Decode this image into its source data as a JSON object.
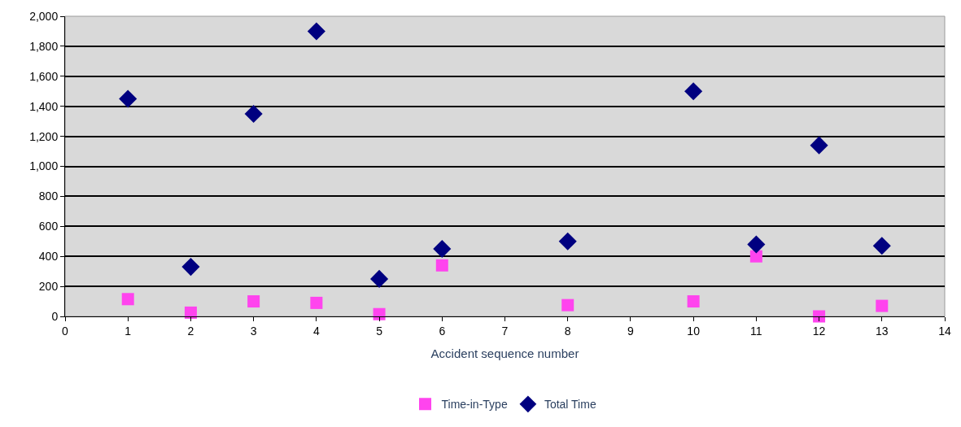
{
  "chart_data": {
    "type": "scatter",
    "xlabel": "Accident sequence number",
    "x": [
      1,
      2,
      3,
      4,
      5,
      6,
      8,
      10,
      11,
      12,
      13
    ],
    "series": [
      {
        "name": "Time-in-Type",
        "color": "#ff44ee",
        "marker": "square",
        "values": [
          115,
          25,
          100,
          90,
          15,
          340,
          75,
          100,
          400,
          0,
          70
        ]
      },
      {
        "name": "Total Time",
        "color": "#000080",
        "marker": "diamond",
        "values": [
          1450,
          330,
          1350,
          1900,
          250,
          450,
          500,
          1500,
          480,
          1140,
          470
        ]
      }
    ],
    "xlim": [
      0,
      14
    ],
    "xticks": [
      0,
      1,
      2,
      3,
      4,
      5,
      6,
      7,
      8,
      9,
      10,
      11,
      12,
      13,
      14
    ],
    "ylim": [
      0,
      2000
    ],
    "yticks": [
      {
        "value": 0,
        "label": "0"
      },
      {
        "value": 200,
        "label": "200"
      },
      {
        "value": 400,
        "label": "400"
      },
      {
        "value": 600,
        "label": "600"
      },
      {
        "value": 800,
        "label": "800"
      },
      {
        "value": 1000,
        "label": "1,000"
      },
      {
        "value": 1200,
        "label": "1,200"
      },
      {
        "value": 1400,
        "label": "1,400"
      },
      {
        "value": 1600,
        "label": "1,600"
      },
      {
        "value": 1800,
        "label": "1,800"
      },
      {
        "value": 2000,
        "label": "2,000"
      }
    ],
    "grid": "y",
    "legend": "bottom"
  }
}
